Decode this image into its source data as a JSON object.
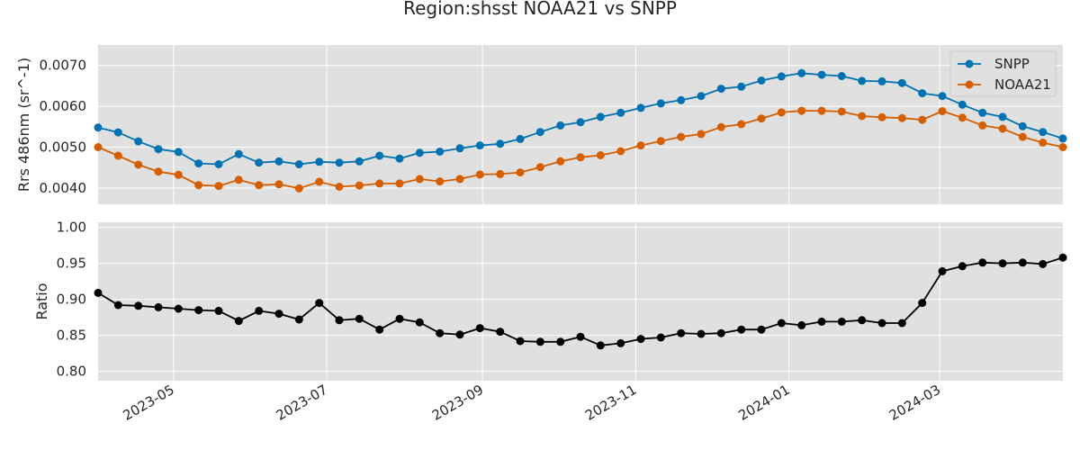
{
  "chart_data": {
    "title": "Region:shsst NOAA21 vs SNPP",
    "x": [
      "2023-04-01",
      "2023-04-09",
      "2023-04-17",
      "2023-04-25",
      "2023-05-03",
      "2023-05-11",
      "2023-05-19",
      "2023-05-27",
      "2023-06-04",
      "2023-06-12",
      "2023-06-20",
      "2023-06-28",
      "2023-07-06",
      "2023-07-14",
      "2023-07-22",
      "2023-07-30",
      "2023-08-07",
      "2023-08-15",
      "2023-08-23",
      "2023-08-31",
      "2023-09-08",
      "2023-09-16",
      "2023-09-24",
      "2023-10-02",
      "2023-10-10",
      "2023-10-18",
      "2023-10-26",
      "2023-11-03",
      "2023-11-11",
      "2023-11-19",
      "2023-11-27",
      "2023-12-05",
      "2023-12-13",
      "2023-12-21",
      "2023-12-29",
      "2024-01-06",
      "2024-01-14",
      "2024-01-22",
      "2024-01-30",
      "2024-02-07",
      "2024-02-15",
      "2024-02-23",
      "2024-03-02",
      "2024-03-10",
      "2024-03-18",
      "2024-03-26",
      "2024-04-03",
      "2024-04-11",
      "2024-04-19"
    ],
    "x_tick_labels": [
      "2023-05",
      "2023-07",
      "2023-09",
      "2023-11",
      "2024-01",
      "2024-03"
    ],
    "x_tick_dates": [
      "2023-05-01",
      "2023-07-01",
      "2023-09-01",
      "2023-11-01",
      "2024-01-01",
      "2024-03-01"
    ],
    "x_range": [
      "2023-04-01",
      "2024-04-19"
    ],
    "panels": [
      {
        "type": "line",
        "ylabel": "Rrs 486nm (sr^-1)",
        "ylim": [
          0.0036,
          0.0075
        ],
        "y_tick_labels": [
          "0.0040",
          "0.0050",
          "0.0060",
          "0.0070"
        ],
        "y_ticks": [
          0.004,
          0.005,
          0.006,
          0.007
        ],
        "legend_position": "upper right",
        "series": [
          {
            "name": "SNPP",
            "color": "#0072b2",
            "values": [
              0.00548,
              0.00536,
              0.00514,
              0.00495,
              0.00488,
              0.0046,
              0.00458,
              0.00483,
              0.00462,
              0.00465,
              0.00458,
              0.00464,
              0.00462,
              0.00465,
              0.00479,
              0.00472,
              0.00486,
              0.00489,
              0.00497,
              0.00504,
              0.00508,
              0.0052,
              0.00537,
              0.00553,
              0.00561,
              0.00574,
              0.00584,
              0.00596,
              0.00607,
              0.00615,
              0.00625,
              0.00643,
              0.00648,
              0.00663,
              0.00673,
              0.00681,
              0.00677,
              0.00674,
              0.00662,
              0.00661,
              0.00657,
              0.00632,
              0.00625,
              0.00604,
              0.00584,
              0.00574,
              0.00551,
              0.00537,
              0.00521
            ]
          },
          {
            "name": "NOAA21",
            "color": "#d55e00",
            "values": [
              0.005,
              0.00479,
              0.00457,
              0.0044,
              0.00432,
              0.00407,
              0.00405,
              0.0042,
              0.00407,
              0.00409,
              0.00399,
              0.00415,
              0.00403,
              0.00406,
              0.00411,
              0.00411,
              0.00422,
              0.00416,
              0.00422,
              0.00433,
              0.00434,
              0.00438,
              0.00451,
              0.00465,
              0.00475,
              0.0048,
              0.0049,
              0.00504,
              0.00515,
              0.00525,
              0.00532,
              0.00549,
              0.00556,
              0.0057,
              0.00585,
              0.00589,
              0.00589,
              0.00587,
              0.00576,
              0.00573,
              0.00571,
              0.00567,
              0.00588,
              0.00572,
              0.00553,
              0.00545,
              0.00525,
              0.00511,
              0.005
            ]
          }
        ]
      },
      {
        "type": "line",
        "ylabel": "Ratio",
        "ylim": [
          0.787,
          1.007
        ],
        "y_tick_labels": [
          "0.80",
          "0.85",
          "0.90",
          "0.95",
          "1.00"
        ],
        "y_ticks": [
          0.8,
          0.85,
          0.9,
          0.95,
          1.0
        ],
        "series": [
          {
            "color": "#000000",
            "values": [
              0.909,
              0.892,
              0.891,
              0.889,
              0.887,
              0.885,
              0.884,
              0.87,
              0.884,
              0.88,
              0.872,
              0.895,
              0.871,
              0.873,
              0.858,
              0.873,
              0.868,
              0.853,
              0.851,
              0.86,
              0.855,
              0.842,
              0.841,
              0.841,
              0.848,
              0.836,
              0.839,
              0.845,
              0.847,
              0.853,
              0.852,
              0.853,
              0.858,
              0.858,
              0.867,
              0.864,
              0.869,
              0.869,
              0.871,
              0.867,
              0.867,
              0.895,
              0.939,
              0.946,
              0.951,
              0.95,
              0.951,
              0.949,
              0.958
            ]
          }
        ]
      }
    ],
    "grid": true
  },
  "colors": {
    "plot_background": "#e0e0e0",
    "grid": "#ffffff",
    "text": "#262626"
  }
}
